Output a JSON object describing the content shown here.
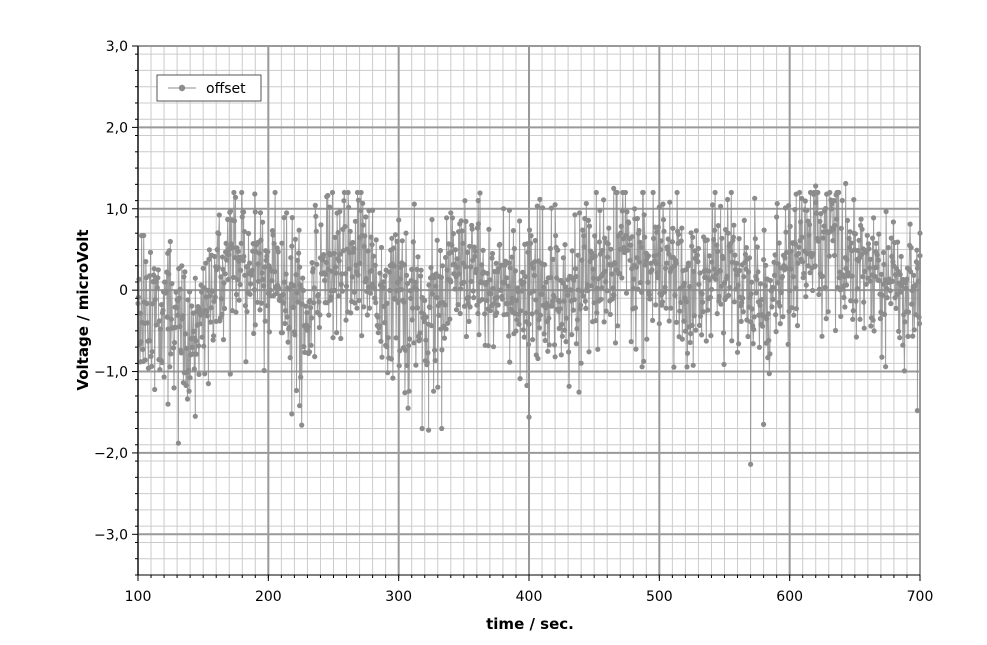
{
  "chart_data": {
    "type": "line",
    "title": "",
    "xlabel": "time / sec.",
    "ylabel": "Voltage / microVolt",
    "xlim": [
      100,
      700
    ],
    "ylim": [
      -3.5,
      3.0
    ],
    "x_ticks": [
      100,
      200,
      300,
      400,
      500,
      600,
      700
    ],
    "x_tick_labels": [
      "100",
      "200",
      "300",
      "400",
      "500",
      "600",
      "700"
    ],
    "y_ticks": [
      -3.0,
      -2.0,
      -1.0,
      0,
      1.0,
      2.0,
      3.0
    ],
    "y_tick_labels": [
      "−3,0",
      "−2,0",
      "−1,0",
      "0",
      "1,0",
      "2,0",
      "3,0"
    ],
    "x_minor_step": 10,
    "y_minor_step": 0.2,
    "grid": true,
    "legend": "top-left",
    "colors": {
      "series": "#8c8c8c",
      "grid_major": "#999999",
      "grid_minor": "#cccccc"
    },
    "series": [
      {
        "name": "offset",
        "x_start": 100,
        "x_step": 0.4,
        "anchors": [
          [
            100,
            -0.3
          ],
          [
            110,
            -0.3
          ],
          [
            120,
            -0.1
          ],
          [
            130,
            -0.45
          ],
          [
            140,
            -0.6
          ],
          [
            150,
            -0.4
          ],
          [
            160,
            0.15
          ],
          [
            170,
            0.3
          ],
          [
            180,
            0.35
          ],
          [
            190,
            0.25
          ],
          [
            200,
            0.15
          ],
          [
            210,
            0.25
          ],
          [
            220,
            -0.1
          ],
          [
            230,
            -0.4
          ],
          [
            240,
            0.3
          ],
          [
            250,
            0.45
          ],
          [
            260,
            0.5
          ],
          [
            270,
            0.4
          ],
          [
            280,
            0.25
          ],
          [
            290,
            -0.1
          ],
          [
            300,
            -0.15
          ],
          [
            310,
            -0.3
          ],
          [
            320,
            -0.3
          ],
          [
            330,
            -0.25
          ],
          [
            340,
            0.1
          ],
          [
            350,
            0.25
          ],
          [
            360,
            0.2
          ],
          [
            370,
            0.15
          ],
          [
            380,
            0.0
          ],
          [
            390,
            -0.25
          ],
          [
            400,
            -0.1
          ],
          [
            410,
            -0.15
          ],
          [
            420,
            0.0
          ],
          [
            430,
            0.1
          ],
          [
            440,
            0.05
          ],
          [
            450,
            0.15
          ],
          [
            460,
            0.25
          ],
          [
            470,
            0.3
          ],
          [
            480,
            0.35
          ],
          [
            490,
            0.25
          ],
          [
            500,
            0.15
          ],
          [
            510,
            0.2
          ],
          [
            520,
            0.05
          ],
          [
            530,
            0.05
          ],
          [
            540,
            0.2
          ],
          [
            550,
            0.25
          ],
          [
            560,
            0.15
          ],
          [
            570,
            0.0
          ],
          [
            580,
            -0.15
          ],
          [
            590,
            0.05
          ],
          [
            600,
            0.3
          ],
          [
            610,
            0.45
          ],
          [
            620,
            0.55
          ],
          [
            630,
            0.6
          ],
          [
            640,
            0.45
          ],
          [
            650,
            0.4
          ],
          [
            660,
            0.25
          ],
          [
            670,
            0.1
          ],
          [
            680,
            0.05
          ],
          [
            690,
            -0.05
          ],
          [
            700,
            0.0
          ]
        ],
        "noise_sd": 0.45,
        "highlights": [
          [
            131,
            -1.88
          ],
          [
            123,
            -1.4
          ],
          [
            144,
            -1.55
          ],
          [
            171,
            0.97
          ],
          [
            181,
            0.96
          ],
          [
            190,
            0.96
          ],
          [
            218,
            -1.52
          ],
          [
            224,
            -1.42
          ],
          [
            247,
            1.02
          ],
          [
            280,
            0.98
          ],
          [
            318,
            -1.7
          ],
          [
            323,
            -1.72
          ],
          [
            333,
            -1.7
          ],
          [
            340,
            0.95
          ],
          [
            361,
            1.1
          ],
          [
            385,
            0.98
          ],
          [
            400,
            -1.56
          ],
          [
            420,
            1.05
          ],
          [
            465,
            1.25
          ],
          [
            481,
            1.0
          ],
          [
            500,
            1.02
          ],
          [
            547,
            1.03
          ],
          [
            570,
            -2.14
          ],
          [
            580,
            -1.65
          ],
          [
            605,
            1.18
          ],
          [
            620,
            1.28
          ],
          [
            643,
            1.31
          ],
          [
            698,
            -1.48
          ],
          [
            700,
            0.7
          ]
        ]
      }
    ]
  }
}
